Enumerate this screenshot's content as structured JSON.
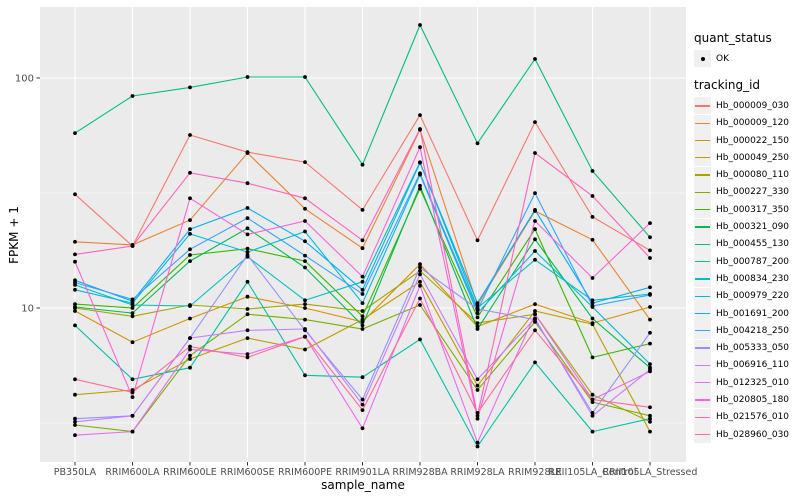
{
  "chart_data": {
    "type": "line",
    "title": "",
    "x_axis": {
      "label": "sample_name",
      "categories": [
        "PB350LA",
        "RRIM600LA",
        "RRIM600LE",
        "RRIM600SE",
        "RRIM600PE",
        "RRIM901LA",
        "RRIM928BA",
        "RRIM928LA",
        "RRIM928LE",
        "RRII105LA_Control",
        "RRII105LA_Stressed"
      ]
    },
    "y_axis": {
      "label": "FPKM + 1",
      "scale": "log10",
      "tick_values": [
        10,
        100
      ],
      "tick_labels": [
        "10",
        "100"
      ],
      "minor_grid_values": [
        3.162,
        31.623
      ],
      "range_approx": [
        2.1,
        205
      ]
    },
    "legend": {
      "quant_status": {
        "title": "quant_status",
        "items": [
          {
            "label": "OK",
            "marker": "point",
            "color": "#000000"
          }
        ]
      },
      "tracking_id": {
        "title": "tracking_id"
      },
      "position": "right"
    },
    "style": {
      "panel_background": "#EBEBEB",
      "major_grid_color": "#FFFFFF",
      "minor_grid_color": "#FFFFFF",
      "point_color": "#000000",
      "tick_text_color": "#4D4D4D"
    },
    "series": [
      {
        "tracking_id": "Hb_000009_030",
        "color": "#F8766D",
        "values": [
          31.2,
          18.6,
          56.5,
          47.6,
          43.1,
          26.7,
          69.0,
          19.7,
          64.3,
          24.9,
          17.8
        ]
      },
      {
        "tracking_id": "Hb_000009_120",
        "color": "#EA8331",
        "values": [
          19.4,
          18.8,
          24.1,
          47.2,
          27.0,
          18.2,
          59.6,
          10.3,
          26.4,
          19.8,
          8.9
        ]
      },
      {
        "tracking_id": "Hb_000022_150",
        "color": "#D89000",
        "values": [
          9.7,
          7.1,
          9.0,
          11.2,
          10.0,
          8.7,
          15.5,
          8.3,
          10.4,
          8.6,
          10.1
        ]
      },
      {
        "tracking_id": "Hb_000049_250",
        "color": "#C09B00",
        "values": [
          4.2,
          4.4,
          6.0,
          7.4,
          6.6,
          8.9,
          13.0,
          4.6,
          9.7,
          8.5,
          2.9
        ]
      },
      {
        "tracking_id": "Hb_000080_110",
        "color": "#A3A500",
        "values": [
          10.0,
          9.2,
          10.3,
          9.9,
          10.4,
          9.7,
          14.5,
          8.6,
          9.4,
          4.2,
          3.2
        ]
      },
      {
        "tracking_id": "Hb_000227_330",
        "color": "#7CAE00",
        "values": [
          3.1,
          2.9,
          6.2,
          9.4,
          8.9,
          8.1,
          10.3,
          4.4,
          8.7,
          3.9,
          3.4
        ]
      },
      {
        "tracking_id": "Hb_000317_350",
        "color": "#39B600",
        "values": [
          10.4,
          10.0,
          17.0,
          18.1,
          16.0,
          9.2,
          33.0,
          9.1,
          22.0,
          6.1,
          7.0
        ]
      },
      {
        "tracking_id": "Hb_000321_090",
        "color": "#00BB4E",
        "values": [
          10.1,
          9.5,
          16.0,
          22.2,
          15.0,
          8.4,
          34.0,
          8.1,
          19.9,
          9.0,
          5.5
        ]
      },
      {
        "tracking_id": "Hb_000455_130",
        "color": "#00BF7D",
        "values": [
          57.6,
          83.5,
          91.0,
          101.0,
          101.0,
          42.0,
          170.0,
          52.0,
          121.0,
          39.4,
          20.3
        ]
      },
      {
        "tracking_id": "Hb_000787_200",
        "color": "#00C1A3",
        "values": [
          8.4,
          4.9,
          5.5,
          13.0,
          5.1,
          5.0,
          7.3,
          2.5,
          5.8,
          2.9,
          3.3
        ]
      },
      {
        "tracking_id": "Hb_000834_230",
        "color": "#00BFC4",
        "values": [
          12.6,
          10.3,
          10.2,
          16.7,
          10.8,
          13.0,
          43.0,
          10.0,
          16.2,
          10.8,
          11.5
        ]
      },
      {
        "tracking_id": "Hb_000979_220",
        "color": "#00BAE0",
        "values": [
          12.0,
          10.5,
          21.0,
          17.5,
          21.5,
          10.5,
          38.0,
          9.5,
          17.7,
          10.1,
          5.7
        ]
      },
      {
        "tracking_id": "Hb_001691_200",
        "color": "#00B0F6",
        "values": [
          13.2,
          10.7,
          22.0,
          27.2,
          19.5,
          12.0,
          42.8,
          10.5,
          26.7,
          10.5,
          12.3
        ]
      },
      {
        "tracking_id": "Hb_004218_250",
        "color": "#35A2FF",
        "values": [
          12.9,
          10.9,
          18.0,
          24.6,
          16.9,
          11.5,
          38.5,
          9.8,
          31.6,
          10.2,
          11.4
        ]
      },
      {
        "tracking_id": "Hb_005333_050",
        "color": "#9590FF",
        "values": [
          3.3,
          3.4,
          7.4,
          17.0,
          8.0,
          4.0,
          15.0,
          9.9,
          8.9,
          3.5,
          7.8
        ]
      },
      {
        "tracking_id": "Hb_006916_110",
        "color": "#C77CFF",
        "values": [
          3.2,
          3.4,
          7.4,
          8.0,
          8.1,
          3.8,
          14.0,
          4.9,
          9.0,
          3.4,
          5.4
        ]
      },
      {
        "tracking_id": "Hb_012325_010",
        "color": "#E76BF3",
        "values": [
          2.8,
          2.9,
          6.6,
          6.3,
          7.5,
          3.0,
          12.5,
          2.6,
          9.4,
          4.0,
          5.3
        ]
      },
      {
        "tracking_id": "Hb_020805_180",
        "color": "#FA62DB",
        "values": [
          15.9,
          4.1,
          30.0,
          20.9,
          23.9,
          13.7,
          50.0,
          3.3,
          23.9,
          13.5,
          23.4
        ]
      },
      {
        "tracking_id": "Hb_021576_010",
        "color": "#FF62BC",
        "values": [
          17.1,
          18.6,
          38.7,
          34.9,
          30.0,
          19.7,
          60.0,
          3.4,
          47.2,
          30.7,
          16.5
        ]
      },
      {
        "tracking_id": "Hb_028960_030",
        "color": "#FF6A98",
        "values": [
          4.9,
          4.3,
          6.8,
          6.1,
          7.5,
          3.6,
          11.0,
          3.5,
          8.0,
          4.0,
          3.7
        ]
      }
    ]
  }
}
